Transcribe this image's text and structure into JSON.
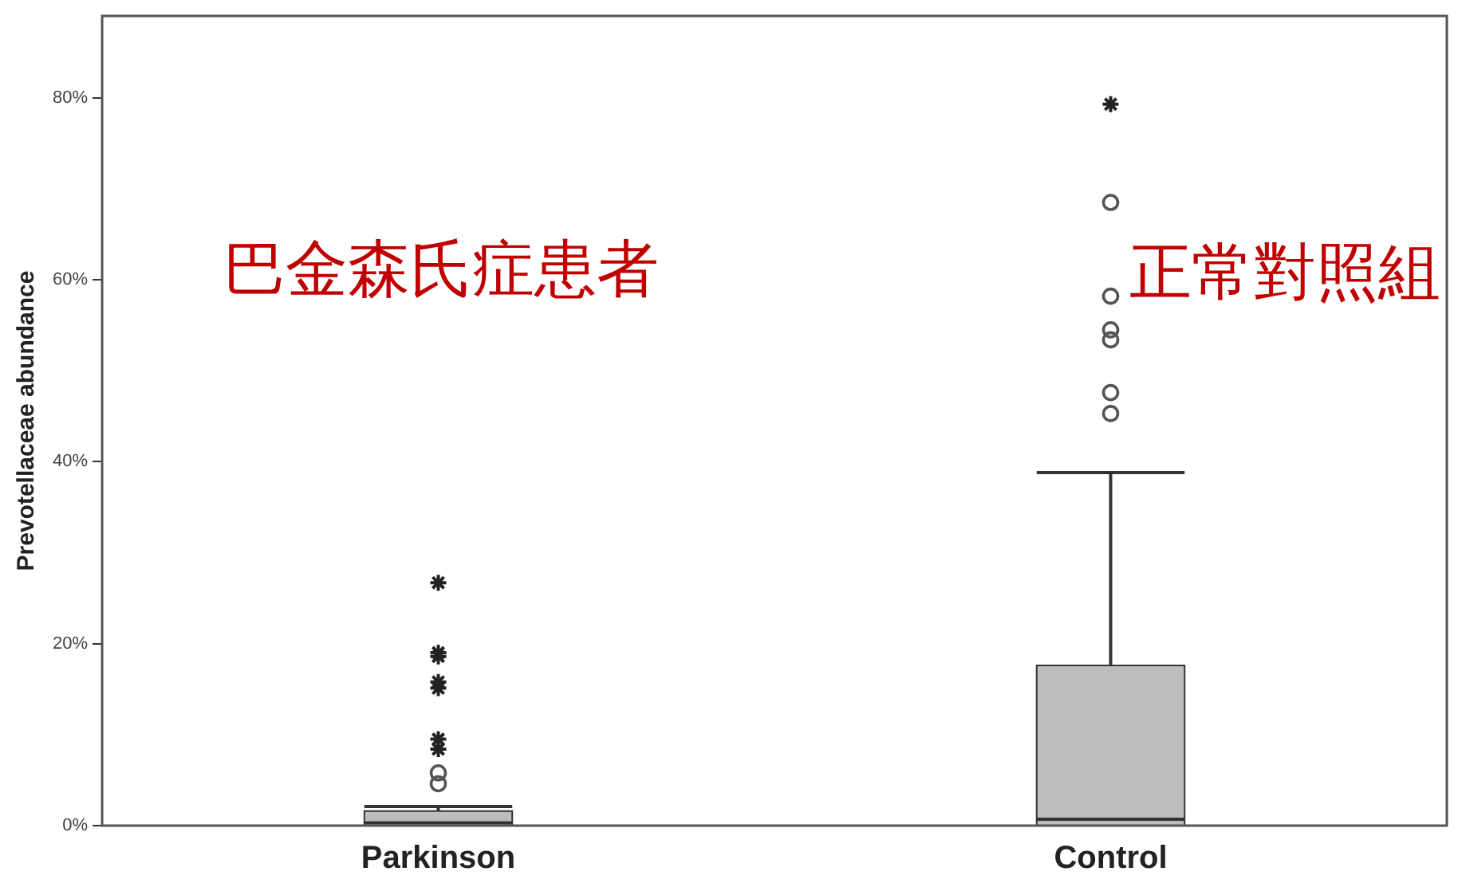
{
  "chart_data": {
    "type": "box",
    "ylabel": "Prevotellaceae abundance",
    "categories": [
      "Parkinson",
      "Control"
    ],
    "color": "#bdbdbd",
    "boxes": [
      {
        "q1": 0,
        "median": 0.3,
        "q3": 1.6,
        "high": 2.1,
        "outliers": [
          26.7,
          19,
          18.6,
          15.8,
          15.1,
          9.5,
          8.4,
          5.8,
          4.6
        ]
      },
      {
        "q1": 0,
        "median": 0.7,
        "q3": 17.6,
        "high": 38.8,
        "outliers": [
          79.3,
          68.5,
          58.2,
          54.5,
          53.4,
          47.6,
          45.3
        ]
      }
    ],
    "ylim": [
      0,
      89
    ],
    "yticks": [
      {
        "value": 0,
        "label": "0%"
      },
      {
        "value": 20,
        "label": "20%"
      },
      {
        "value": 40,
        "label": "40%"
      },
      {
        "value": 60,
        "label": "60%"
      },
      {
        "value": 80,
        "label": "80%"
      }
    ],
    "grid": false,
    "legend": false,
    "annotations": [
      "巴金森氏症患者",
      "正常對照組"
    ]
  }
}
